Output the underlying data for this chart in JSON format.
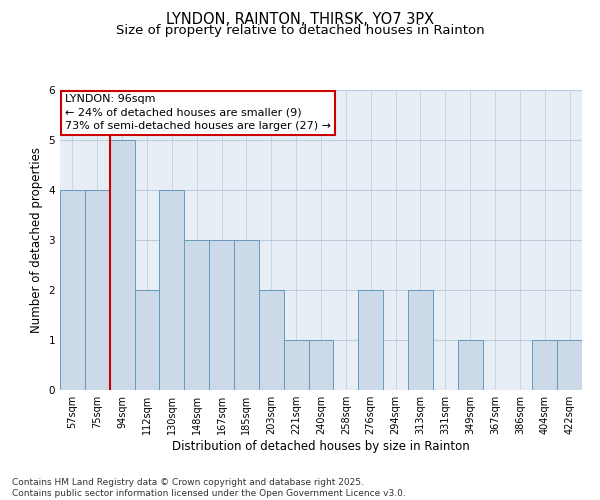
{
  "title1": "LYNDON, RAINTON, THIRSK, YO7 3PX",
  "title2": "Size of property relative to detached houses in Rainton",
  "xlabel": "Distribution of detached houses by size in Rainton",
  "ylabel": "Number of detached properties",
  "footer": "Contains HM Land Registry data © Crown copyright and database right 2025.\nContains public sector information licensed under the Open Government Licence v3.0.",
  "categories": [
    "57sqm",
    "75sqm",
    "94sqm",
    "112sqm",
    "130sqm",
    "148sqm",
    "167sqm",
    "185sqm",
    "203sqm",
    "221sqm",
    "240sqm",
    "258sqm",
    "276sqm",
    "294sqm",
    "313sqm",
    "331sqm",
    "349sqm",
    "367sqm",
    "386sqm",
    "404sqm",
    "422sqm"
  ],
  "values": [
    4,
    4,
    5,
    2,
    4,
    3,
    3,
    3,
    2,
    1,
    1,
    0,
    2,
    0,
    2,
    0,
    1,
    0,
    0,
    1,
    1
  ],
  "bar_color": "#ccd9e8",
  "bar_edge_color": "#6699bb",
  "highlight_index": 2,
  "highlight_line_color": "#cc0000",
  "annotation_text": "LYNDON: 96sqm\n← 24% of detached houses are smaller (9)\n73% of semi-detached houses are larger (27) →",
  "annotation_box_color": "#cc0000",
  "ylim": [
    0,
    6
  ],
  "yticks": [
    0,
    1,
    2,
    3,
    4,
    5,
    6
  ],
  "grid_color": "#bbccdd",
  "bg_color": "#e8eef5",
  "title_fontsize": 10.5,
  "subtitle_fontsize": 9.5,
  "axis_label_fontsize": 8.5,
  "tick_fontsize": 7,
  "footer_fontsize": 6.5,
  "annotation_fontsize": 8
}
